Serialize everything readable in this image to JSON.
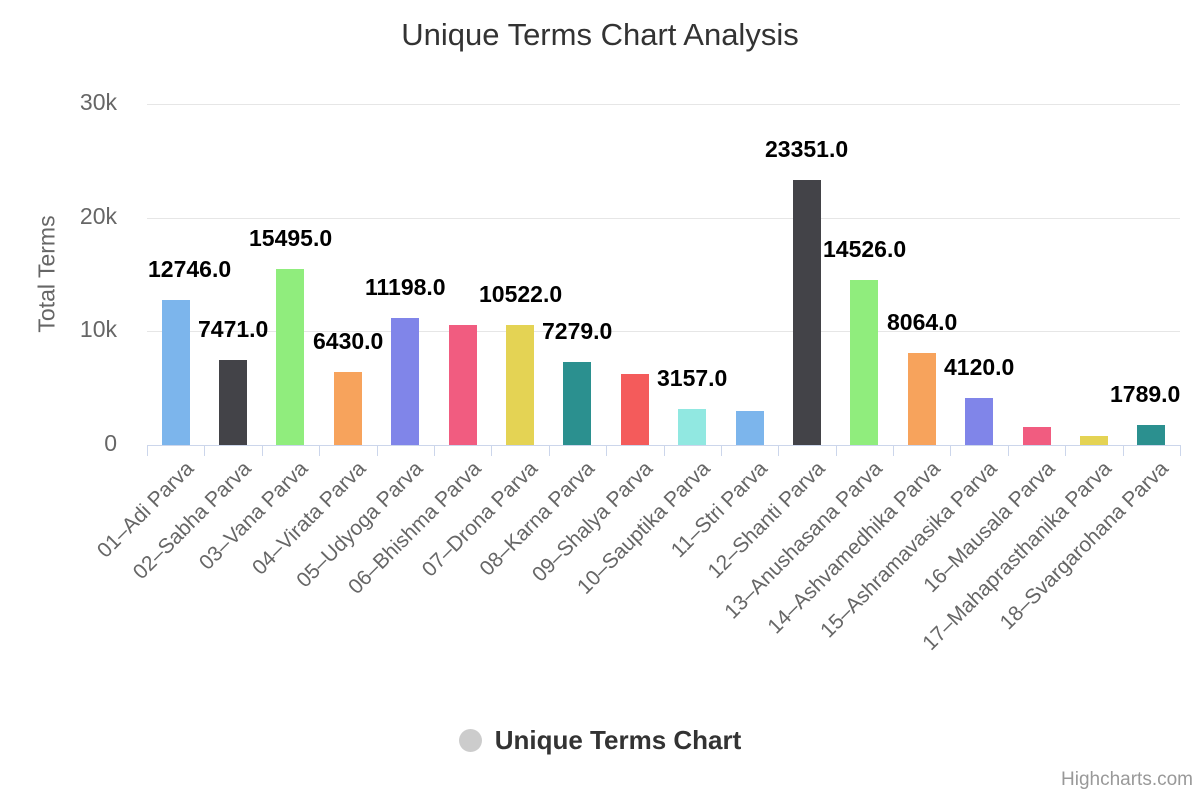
{
  "chart": {
    "title": "Unique Terms Chart Analysis",
    "y_axis": {
      "title": "Total Terms",
      "tick_labels": [
        "0",
        "10k",
        "20k",
        "30k"
      ]
    },
    "legend": {
      "label": "Unique Terms Chart",
      "marker_color": "#cccccc"
    },
    "credits": "Highcharts.com",
    "style": {
      "title_color": "#333333",
      "axis_label_color": "#666666",
      "data_label_color": "#000000",
      "gridline_color": "#e6e6e6",
      "axis_line_color": "#ccd6eb",
      "credits_color": "#999999",
      "background_color": "#ffffff"
    }
  },
  "chart_data": {
    "type": "bar",
    "title": "Unique Terms Chart Analysis",
    "xlabel": "",
    "ylabel": "Total Terms",
    "ylim": [
      0,
      30000
    ],
    "y_ticks": {
      "values": [
        0,
        10000,
        20000,
        30000
      ],
      "labels": [
        "0",
        "10k",
        "20k",
        "30k"
      ]
    },
    "grid": true,
    "legend_position": "bottom",
    "categories": [
      "01–Adi Parva",
      "02–Sabha Parva",
      "03–Vana Parva",
      "04–Virata Parva",
      "05–Udyoga Parva",
      "06–Bhishma Parva",
      "07–Drona Parva",
      "08–Karna Parva",
      "09–Shalya Parva",
      "10–Sauptika Parva",
      "11–Stri Parva",
      "12–Shanti Parva",
      "13–Anushasana Parva",
      "14–Ashvamedhika Parva",
      "15–Ashramavasika Parva",
      "16–Mausala Parva",
      "17–Mahaprasthanika Parva",
      "18–Svargarohana Parva"
    ],
    "series": [
      {
        "name": "Unique Terms Chart",
        "values": [
          12746,
          7471,
          15495,
          6430,
          11198,
          10580,
          10522,
          7279,
          6270,
          3157,
          3000,
          23351,
          14526,
          8064,
          4120,
          1590,
          790,
          1789
        ]
      }
    ],
    "data_labels_visible": [
      true,
      true,
      true,
      true,
      true,
      false,
      true,
      true,
      false,
      true,
      false,
      true,
      true,
      true,
      true,
      false,
      false,
      true
    ],
    "data_label_format": "one_decimal",
    "bar_colors": [
      "#7cb5ec",
      "#434348",
      "#90ed7d",
      "#f7a35c",
      "#8085e9",
      "#f15c80",
      "#e4d354",
      "#2b908f",
      "#f45b5b",
      "#91e8e1",
      "#7cb5ec",
      "#434348",
      "#90ed7d",
      "#f7a35c",
      "#8085e9",
      "#f15c80",
      "#e4d354",
      "#2b908f"
    ],
    "palette": [
      "#7cb5ec",
      "#434348",
      "#90ed7d",
      "#f7a35c",
      "#8085e9",
      "#f15c80",
      "#e4d354",
      "#2b908f",
      "#f45b5b",
      "#91e8e1"
    ]
  }
}
